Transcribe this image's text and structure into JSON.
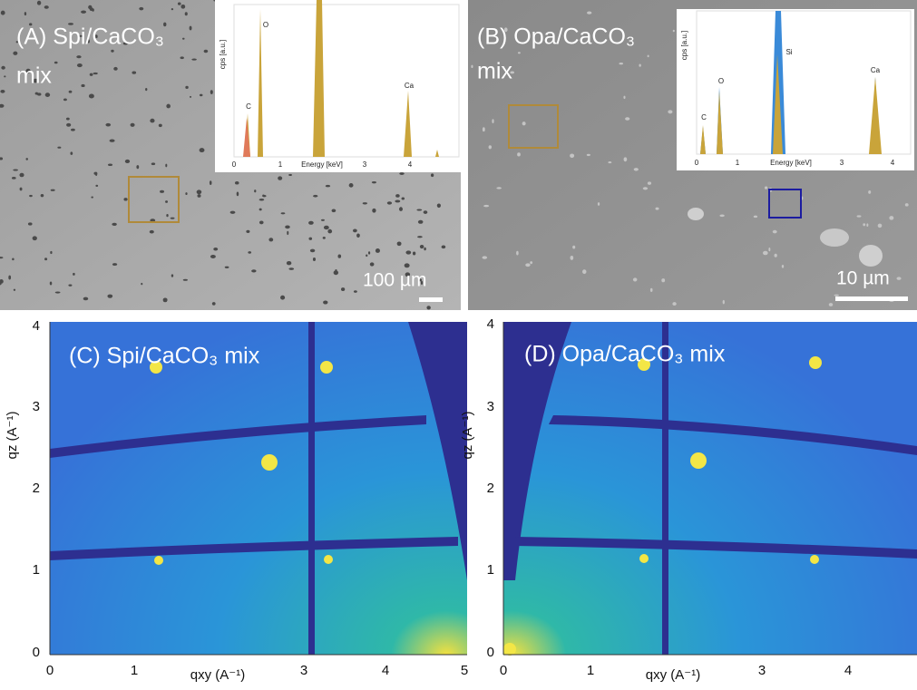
{
  "panels": [
    {
      "label": "(A) Spi/CaCO₃",
      "label2": "mix",
      "scale_bar": "100 µm",
      "inset": {
        "y_label": "cps [a.u.]",
        "x_label": "Energy [keV]",
        "x_ticks": [
          0,
          1,
          3,
          4
        ],
        "peaks": [
          "C",
          "O",
          "Ca"
        ]
      }
    },
    {
      "label": "(B) Opa/CaCO₃",
      "label2": "mix",
      "scale_bar": "10 µm",
      "inset": {
        "y_label": "cps [a.u.]",
        "x_label": "Energy [keV]",
        "x_ticks": [
          0,
          1,
          3,
          4
        ],
        "peaks": [
          "C",
          "O",
          "Si",
          "Ca"
        ]
      }
    },
    {
      "label": "(C) Spi/CaCO₃ mix",
      "y_label": "qz (A⁻¹)",
      "x_label": "qxy (A⁻¹)",
      "y_ticks": [
        0,
        1,
        2,
        3,
        4
      ],
      "x_ticks": [
        0,
        1,
        3,
        4,
        5
      ]
    },
    {
      "label": "(D) Opa/CaCO₃ mix",
      "y_label": "qz (A⁻¹)",
      "x_label": "qxy (A⁻¹)",
      "y_ticks": [
        0,
        1,
        2,
        3,
        4
      ],
      "x_ticks": [
        0,
        1,
        3,
        4
      ]
    }
  ]
}
